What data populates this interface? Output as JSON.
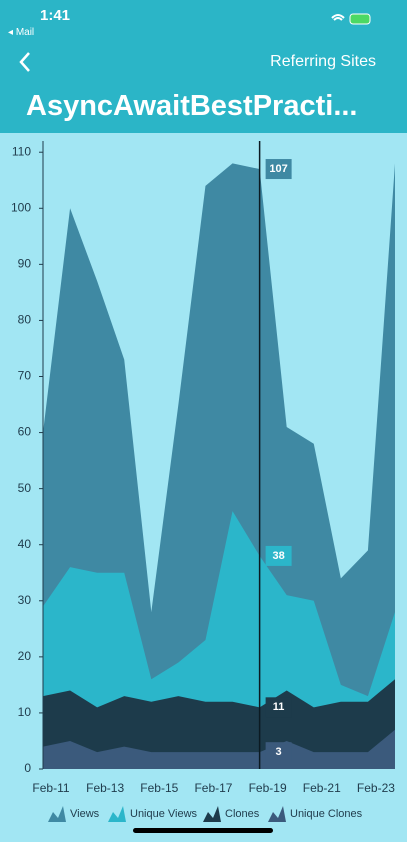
{
  "status_bar": {
    "time": "1:41",
    "back_app": "Mail"
  },
  "nav": {
    "right_title": "Referring Sites"
  },
  "header": {
    "title": "AsyncAwaitBestPracti..."
  },
  "chart_data": {
    "type": "area",
    "categories": [
      "Feb-11",
      null,
      "Feb-13",
      null,
      "Feb-15",
      null,
      "Feb-17",
      null,
      "Feb-19",
      null,
      "Feb-21",
      null,
      "Feb-23",
      null
    ],
    "series": [
      {
        "name": "Views",
        "color": "#3f89a3",
        "values": [
          60,
          100,
          87,
          73,
          28,
          65,
          104,
          108,
          107,
          61,
          58,
          34,
          39,
          108
        ]
      },
      {
        "name": "Unique Views",
        "color": "#2bb6ca",
        "values": [
          29,
          36,
          35,
          35,
          16,
          19,
          23,
          46,
          38,
          31,
          30,
          15,
          13,
          28
        ]
      },
      {
        "name": "Clones",
        "color": "#1d3b4b",
        "values": [
          13,
          14,
          11,
          13,
          12,
          13,
          12,
          12,
          11,
          14,
          11,
          12,
          12,
          16
        ]
      },
      {
        "name": "Unique Clones",
        "color": "#3b5a7c",
        "values": [
          4,
          5,
          3,
          4,
          3,
          3,
          3,
          3,
          3,
          5,
          3,
          3,
          3,
          7
        ]
      }
    ],
    "ylim": [
      0,
      112
    ],
    "yticks": [
      0,
      10,
      20,
      30,
      40,
      50,
      60,
      70,
      80,
      90,
      100,
      110
    ],
    "grid": false
  }
}
